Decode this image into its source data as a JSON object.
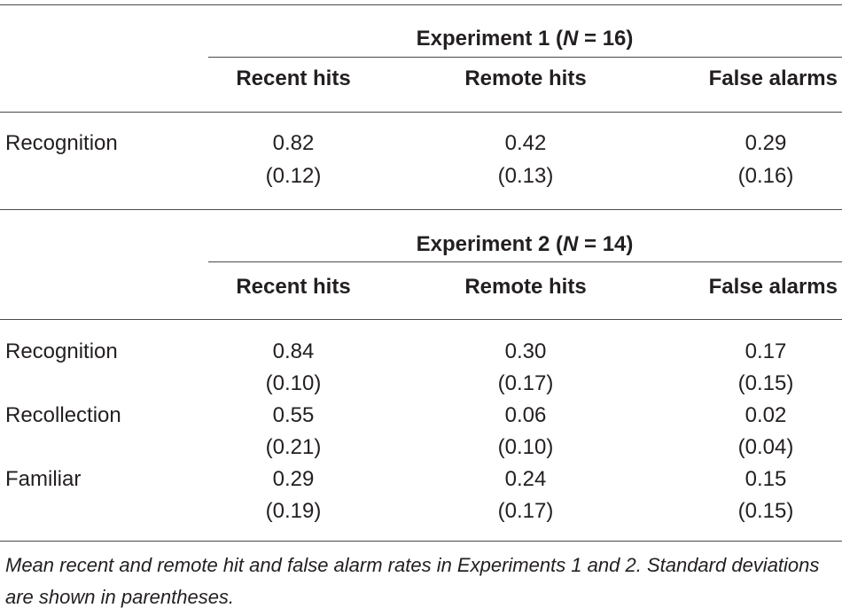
{
  "table": {
    "sections": [
      {
        "header_prefix": "Experiment 1 (",
        "header_n": "N",
        "header_suffix": " = 16)",
        "columns": [
          "Recent hits",
          "Remote hits",
          "False alarms"
        ],
        "rows": [
          {
            "label": "Recognition",
            "means": [
              "0.82",
              "0.42",
              "0.29"
            ],
            "sds": [
              "(0.12)",
              "(0.13)",
              "(0.16)"
            ]
          }
        ]
      },
      {
        "header_prefix": "Experiment 2 (",
        "header_n": "N",
        "header_suffix": " = 14)",
        "columns": [
          "Recent hits",
          "Remote hits",
          "False alarms"
        ],
        "rows": [
          {
            "label": "Recognition",
            "means": [
              "0.84",
              "0.30",
              "0.17"
            ],
            "sds": [
              "(0.10)",
              "(0.17)",
              "(0.15)"
            ]
          },
          {
            "label": "Recollection",
            "means": [
              "0.55",
              "0.06",
              "0.02"
            ],
            "sds": [
              "(0.21)",
              "(0.10)",
              "(0.04)"
            ]
          },
          {
            "label": "Familiar",
            "means": [
              "0.29",
              "0.24",
              "0.15"
            ],
            "sds": [
              "(0.19)",
              "(0.17)",
              "(0.15)"
            ]
          }
        ]
      }
    ],
    "footnote": "Mean recent and remote hit and false alarm rates in Experiments 1 and 2. Standard deviations are shown in parentheses."
  }
}
